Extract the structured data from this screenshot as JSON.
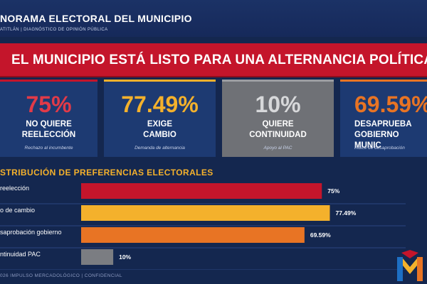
{
  "header": {
    "title": "NORAMA ELECTORAL DEL MUNICIPIO",
    "subtitle": "ATITLÁN  |  DIAGNÓSTICO DE OPINIÓN PÚBLICA"
  },
  "banner": {
    "text": "EL MUNICIPIO ESTÁ LISTO PARA UNA ALTERNANCIA POLÍTICA"
  },
  "cards": [
    {
      "value": "75%",
      "label": "NO QUIERE\nREELECCIÓN",
      "note": "Rechazo al incumbente",
      "color": "#e23a48"
    },
    {
      "value": "77.49%",
      "label": "EXIGE\nCAMBIO",
      "note": "Demanda de alternancia",
      "color": "#f4b12c"
    },
    {
      "value": "10%",
      "label": "QUIERE\nCONTINUIDAD",
      "note": "Apoyo al PAC",
      "color": "#d7d8da"
    },
    {
      "value": "69.59%",
      "label": "DESAPRUEBA\nGOBIERNO MUNIC",
      "note": "Índice de desaprobación",
      "color": "#e87424"
    }
  ],
  "chart_data": {
    "type": "bar",
    "title": "STRIBUCIÓN DE PREFERENCIAS ELECTORALES",
    "categories": [
      "reelección",
      "o de cambio",
      "saprobación gobierno",
      "ntinuidad PAC"
    ],
    "values": [
      75,
      77.49,
      69.59,
      10
    ],
    "value_labels": [
      "75%",
      "77.49%",
      "69.59%",
      "10%"
    ],
    "colors": [
      "#c4152b",
      "#f4b12c",
      "#e87424",
      "#7b7d82"
    ],
    "xlim": [
      0,
      100
    ],
    "grid": false,
    "legend": "none"
  },
  "footer": {
    "text": "026 IMPULSO MERCADOLÓGICO  |  CONFIDENCIAL"
  },
  "logo": {
    "colors": [
      "#c4152b",
      "#f4b12c",
      "#e87424",
      "#1d6fc4"
    ]
  }
}
